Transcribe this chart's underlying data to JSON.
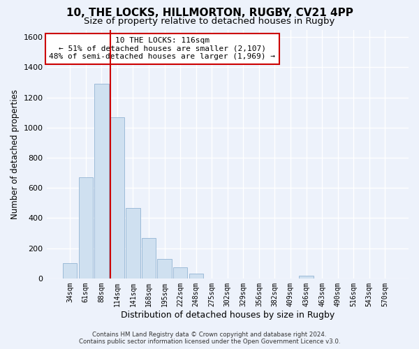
{
  "title1": "10, THE LOCKS, HILLMORTON, RUGBY, CV21 4PP",
  "title2": "Size of property relative to detached houses in Rugby",
  "xlabel": "Distribution of detached houses by size in Rugby",
  "ylabel": "Number of detached properties",
  "bar_labels": [
    "34sqm",
    "61sqm",
    "88sqm",
    "114sqm",
    "141sqm",
    "168sqm",
    "195sqm",
    "222sqm",
    "248sqm",
    "275sqm",
    "302sqm",
    "329sqm",
    "356sqm",
    "382sqm",
    "409sqm",
    "436sqm",
    "463sqm",
    "490sqm",
    "516sqm",
    "543sqm",
    "570sqm"
  ],
  "bar_values": [
    100,
    670,
    1290,
    1070,
    465,
    268,
    130,
    73,
    30,
    0,
    0,
    0,
    0,
    0,
    0,
    18,
    0,
    0,
    0,
    0,
    0
  ],
  "bar_color": "#cfe0f0",
  "bar_edge_color": "#9dbbd8",
  "highlight_index": 3,
  "highlight_color": "#cc0000",
  "ylim": [
    0,
    1650
  ],
  "yticks": [
    0,
    200,
    400,
    600,
    800,
    1000,
    1200,
    1400,
    1600
  ],
  "annotation_title": "10 THE LOCKS: 116sqm",
  "annotation_line1": "← 51% of detached houses are smaller (2,107)",
  "annotation_line2": "48% of semi-detached houses are larger (1,969) →",
  "footer_line1": "Contains HM Land Registry data © Crown copyright and database right 2024.",
  "footer_line2": "Contains public sector information licensed under the Open Government Licence v3.0.",
  "bg_color": "#edf2fb",
  "grid_color": "#ffffff",
  "title1_fontsize": 11,
  "title2_fontsize": 9.5
}
